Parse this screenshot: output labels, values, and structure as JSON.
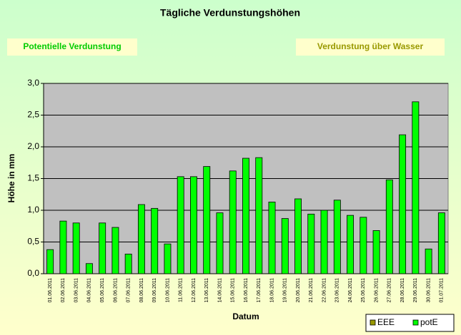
{
  "chart_data": {
    "type": "bar",
    "title": "Tägliche Verdunstungshöhen",
    "annotations": [
      "Potentielle Verdunstung",
      "Verdunstung über Wasser"
    ],
    "ylabel": "Höhe in mm",
    "xlabel": "Datum",
    "categories": [
      "01.06.2011",
      "02.06.2011",
      "03.06.2011",
      "04.06.2011",
      "05.06.2011",
      "06.06.2011",
      "07.06.2011",
      "08.06.2011",
      "09.06.2011",
      "10.06.2011",
      "11.06.2011",
      "12.06.2011",
      "13.06.2011",
      "14.06.2011",
      "15.06.2011",
      "16.06.2011",
      "17.06.2011",
      "18.06.2011",
      "19.06.2011",
      "20.06.2011",
      "21.06.2011",
      "22.06.2011",
      "23.06.2011",
      "24.06.2011",
      "25.06.2011",
      "26.06.2011",
      "27.06.2011",
      "28.06.2011",
      "29.06.2011",
      "30.06.2011",
      "01.07.2011"
    ],
    "series": [
      {
        "name": "EEE",
        "color": "#999900",
        "values": [
          null,
          null,
          null,
          null,
          null,
          null,
          null,
          null,
          null,
          null,
          null,
          null,
          null,
          null,
          null,
          null,
          null,
          null,
          null,
          null,
          null,
          null,
          null,
          null,
          null,
          null,
          null,
          null,
          null,
          null,
          null
        ]
      },
      {
        "name": "potE",
        "color": "#00ff00",
        "values": [
          0.38,
          0.83,
          0.8,
          0.16,
          0.8,
          0.73,
          0.31,
          1.09,
          1.03,
          0.47,
          1.53,
          1.53,
          1.69,
          0.96,
          1.62,
          1.82,
          1.83,
          1.13,
          0.87,
          1.18,
          0.94,
          1.0,
          1.16,
          0.92,
          0.89,
          0.68,
          1.48,
          2.19,
          2.71,
          0.39,
          0.96
        ]
      }
    ],
    "ylim": [
      0,
      3
    ],
    "yticks": [
      {
        "value": 0,
        "label": "0,0"
      },
      {
        "value": 0.5,
        "label": "0,5"
      },
      {
        "value": 1,
        "label": "1,0"
      },
      {
        "value": 1.5,
        "label": "1,5"
      },
      {
        "value": 2,
        "label": "2,0"
      },
      {
        "value": 2.5,
        "label": "2,5"
      },
      {
        "value": 3,
        "label": "3,0"
      }
    ],
    "grid": true,
    "legend": "bottom-right"
  }
}
